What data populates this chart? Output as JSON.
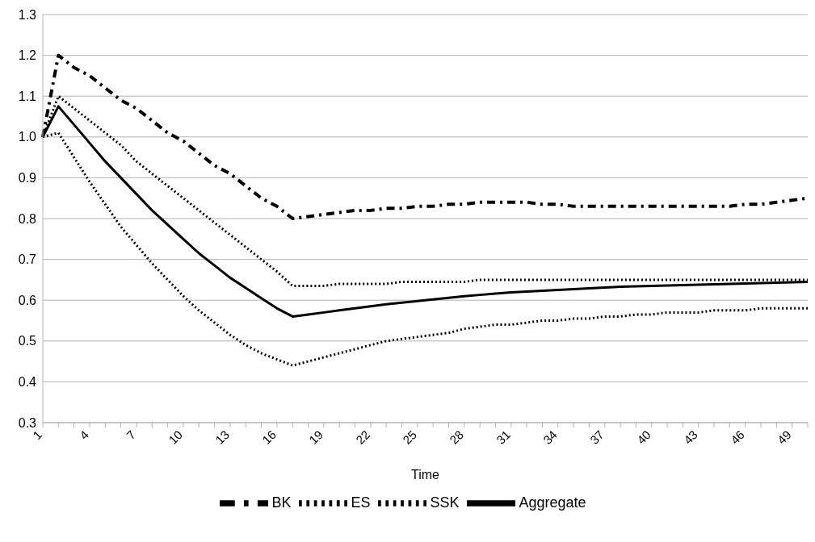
{
  "chart_data": {
    "type": "line",
    "xlabel": "Time",
    "categories": [
      "1",
      null,
      null,
      "4",
      null,
      null,
      "7",
      null,
      null,
      "10",
      null,
      null,
      "13",
      null,
      null,
      "16",
      null,
      null,
      "19",
      null,
      null,
      "22",
      null,
      null,
      "25",
      null,
      null,
      "28",
      null,
      null,
      "31",
      null,
      null,
      "34",
      null,
      null,
      "37",
      null,
      null,
      "40",
      null,
      null,
      "43",
      null,
      null,
      "46",
      null,
      null,
      "49",
      null
    ],
    "ylim": [
      0.3,
      1.3
    ],
    "yticks": [
      0.3,
      0.4,
      0.5,
      0.6,
      0.7,
      0.8,
      0.9,
      {
        "value": 1,
        "label": "1.0"
      },
      1.1,
      1.2,
      1.3
    ],
    "grid": "y",
    "legend": "bottom",
    "marker": "none",
    "series": [
      {
        "name": "BK",
        "color": "#000000",
        "line_style": "dashed",
        "values": [
          1.0,
          1.2,
          1.17,
          1.15,
          1.12,
          1.09,
          1.07,
          1.04,
          1.01,
          0.99,
          0.96,
          0.93,
          0.91,
          0.88,
          0.85,
          0.83,
          0.8,
          0.805,
          0.81,
          0.815,
          0.82,
          0.82,
          0.825,
          0.825,
          0.83,
          0.83,
          0.835,
          0.835,
          0.84,
          0.84,
          0.84,
          0.84,
          0.835,
          0.835,
          0.83,
          0.83,
          0.83,
          0.83,
          0.83,
          0.83,
          0.83,
          0.83,
          0.83,
          0.83,
          0.83,
          0.835,
          0.835,
          0.84,
          0.845,
          0.85
        ]
      },
      {
        "name": "ES",
        "color": "#000000",
        "line_style": "dotted",
        "values": [
          1.0,
          1.1,
          1.07,
          1.04,
          1.01,
          0.98,
          0.94,
          0.91,
          0.88,
          0.85,
          0.82,
          0.79,
          0.76,
          0.73,
          0.7,
          0.67,
          0.635,
          0.635,
          0.635,
          0.64,
          0.64,
          0.64,
          0.64,
          0.645,
          0.645,
          0.645,
          0.645,
          0.645,
          0.65,
          0.65,
          0.65,
          0.65,
          0.65,
          0.65,
          0.65,
          0.65,
          0.65,
          0.65,
          0.65,
          0.65,
          0.65,
          0.65,
          0.65,
          0.65,
          0.65,
          0.65,
          0.65,
          0.65,
          0.65,
          0.65
        ]
      },
      {
        "name": "SSK",
        "color": "#000000",
        "line_style": "dotted",
        "values": [
          1.0,
          1.01,
          0.95,
          0.89,
          0.835,
          0.78,
          0.735,
          0.69,
          0.65,
          0.61,
          0.575,
          0.545,
          0.515,
          0.49,
          0.47,
          0.455,
          0.44,
          0.45,
          0.46,
          0.47,
          0.48,
          0.49,
          0.5,
          0.505,
          0.51,
          0.515,
          0.52,
          0.53,
          0.535,
          0.54,
          0.54,
          0.545,
          0.55,
          0.55,
          0.555,
          0.555,
          0.56,
          0.56,
          0.565,
          0.565,
          0.57,
          0.57,
          0.57,
          0.575,
          0.575,
          0.575,
          0.58,
          0.58,
          0.58,
          0.58
        ]
      },
      {
        "name": "Aggregate",
        "color": "#000000",
        "line_style": "solid",
        "values": [
          1.0,
          1.075,
          1.03,
          0.985,
          0.94,
          0.9,
          0.86,
          0.82,
          0.785,
          0.75,
          0.715,
          0.685,
          0.655,
          0.63,
          0.605,
          0.58,
          0.56,
          0.565,
          0.57,
          0.575,
          0.58,
          0.585,
          0.59,
          0.594,
          0.598,
          0.602,
          0.606,
          0.61,
          0.613,
          0.616,
          0.619,
          0.621,
          0.623,
          0.625,
          0.627,
          0.629,
          0.631,
          0.633,
          0.634,
          0.635,
          0.636,
          0.637,
          0.638,
          0.639,
          0.64,
          0.641,
          0.642,
          0.643,
          0.644,
          0.645
        ]
      }
    ]
  }
}
